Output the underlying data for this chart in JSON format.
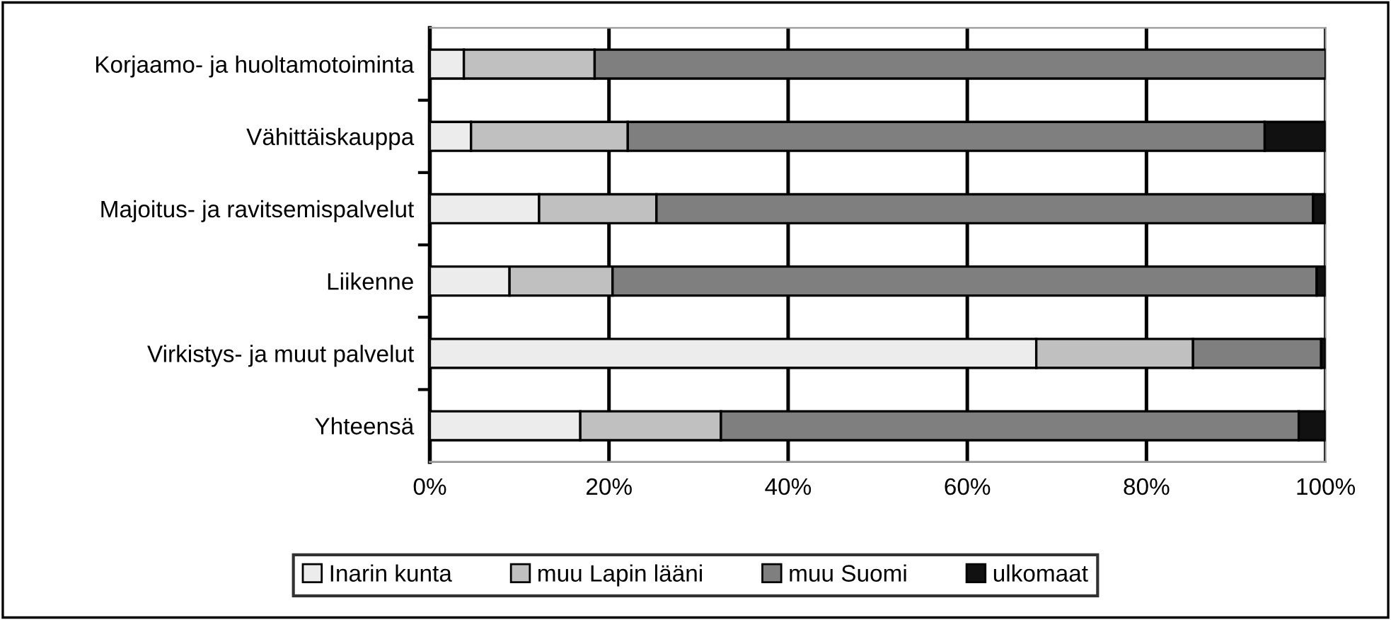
{
  "chart_data": {
    "type": "bar",
    "orientation": "horizontal",
    "stacked": true,
    "categories": [
      "Korjaamo- ja huoltamotoiminta",
      "Vähittäiskauppa",
      "Majoitus- ja ravitsemispalvelut",
      "Liikenne",
      "Virkistys- ja muut palvelut",
      "Yhteensä"
    ],
    "series": [
      {
        "name": "Inarin kunta",
        "color": "#ececec",
        "values": [
          3.8,
          4.6,
          12.2,
          8.9,
          67.7,
          16.8
        ]
      },
      {
        "name": "muu Lapin lääni",
        "color": "#c0c0c0",
        "values": [
          14.6,
          17.5,
          13.1,
          11.5,
          17.5,
          15.7
        ]
      },
      {
        "name": "muu Suomi",
        "color": "#7f7f7f",
        "values": [
          81.6,
          71.1,
          73.3,
          78.6,
          14.3,
          64.5
        ]
      },
      {
        "name": "ulkomaat",
        "color": "#111111",
        "values": [
          null,
          6.8,
          1.4,
          1.0,
          0.5,
          3.0
        ]
      }
    ],
    "xlim": [
      0,
      100
    ],
    "xticks": [
      {
        "value": 0,
        "label": "0%"
      },
      {
        "value": 20,
        "label": "20%"
      },
      {
        "value": 40,
        "label": "40%"
      },
      {
        "value": 60,
        "label": "60%"
      },
      {
        "value": 80,
        "label": "80%"
      },
      {
        "value": 100,
        "label": "100%"
      }
    ],
    "grid": "x",
    "legend": "bottom"
  }
}
